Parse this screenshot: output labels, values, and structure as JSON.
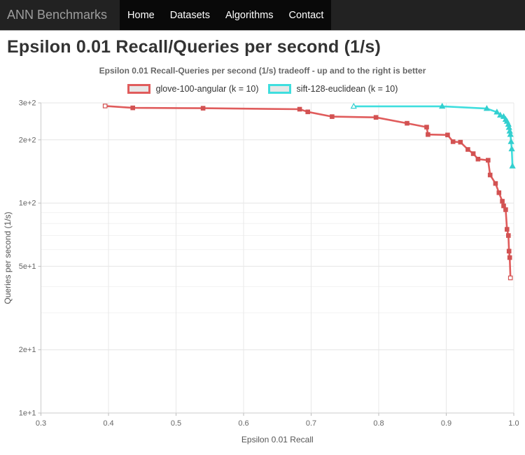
{
  "navbar": {
    "brand": "ANN Benchmarks",
    "items": [
      {
        "label": "Home"
      },
      {
        "label": "Datasets"
      },
      {
        "label": "Algorithms"
      },
      {
        "label": "Contact"
      }
    ]
  },
  "page": {
    "title": "Epsilon 0.01 Recall/Queries per second (1/s)"
  },
  "chart_data": {
    "type": "line",
    "title": "Epsilon 0.01 Recall-Queries per second (1/s) tradeoff - up and to the right is better",
    "xlabel": "Epsilon 0.01 Recall",
    "ylabel": "Queries per second (1/s)",
    "x_scale": "linear",
    "y_scale": "log",
    "xlim": [
      0.3,
      1.0
    ],
    "ylim": [
      10,
      300
    ],
    "grid": true,
    "legend_position": "top-center",
    "legend_swatch_fill": "#e7e7e7",
    "x_ticks": [
      {
        "value": 0.3,
        "label": "0.3"
      },
      {
        "value": 0.4,
        "label": "0.4"
      },
      {
        "value": 0.5,
        "label": "0.5"
      },
      {
        "value": 0.6,
        "label": "0.6"
      },
      {
        "value": 0.7,
        "label": "0.7"
      },
      {
        "value": 0.8,
        "label": "0.8"
      },
      {
        "value": 0.9,
        "label": "0.9"
      },
      {
        "value": 1.0,
        "label": "1.0"
      }
    ],
    "y_ticks": [
      {
        "value": 300,
        "label": "3e+2"
      },
      {
        "value": 200,
        "label": "2e+2"
      },
      {
        "value": 100,
        "label": "1e+2"
      },
      {
        "value": 50,
        "label": "5e+1"
      },
      {
        "value": 20,
        "label": "2e+1"
      },
      {
        "value": 10,
        "label": "1e+1"
      }
    ],
    "y_minor_grid": [
      90,
      80,
      70,
      60,
      40,
      30
    ],
    "series": [
      {
        "name": "glove-100-angular (k = 10)",
        "color": "#e05c5c",
        "marker_fill": "#d25252",
        "marker": "square",
        "hollow_first": true,
        "hollow_last": true,
        "points": [
          [
            0.395,
            290
          ],
          [
            0.436,
            284
          ],
          [
            0.54,
            283
          ],
          [
            0.683,
            280
          ],
          [
            0.695,
            272
          ],
          [
            0.731,
            258
          ],
          [
            0.796,
            256
          ],
          [
            0.842,
            240
          ],
          [
            0.871,
            230
          ],
          [
            0.873,
            212
          ],
          [
            0.902,
            211
          ],
          [
            0.91,
            196
          ],
          [
            0.921,
            195
          ],
          [
            0.932,
            180
          ],
          [
            0.94,
            172
          ],
          [
            0.947,
            162
          ],
          [
            0.962,
            160
          ],
          [
            0.965,
            136
          ],
          [
            0.973,
            124
          ],
          [
            0.978,
            112
          ],
          [
            0.983,
            102
          ],
          [
            0.985,
            97
          ],
          [
            0.988,
            93
          ],
          [
            0.99,
            75
          ],
          [
            0.992,
            70
          ],
          [
            0.993,
            59
          ],
          [
            0.994,
            55
          ],
          [
            0.995,
            44
          ]
        ]
      },
      {
        "name": "sift-128-euclidean (k = 10)",
        "color": "#3fdede",
        "marker_fill": "#33cfcf",
        "marker": "triangle",
        "hollow_first": true,
        "hollow_last": false,
        "points": [
          [
            0.763,
            289
          ],
          [
            0.894,
            289
          ],
          [
            0.96,
            282
          ],
          [
            0.975,
            271
          ],
          [
            0.98,
            262
          ],
          [
            0.985,
            258
          ],
          [
            0.988,
            250
          ],
          [
            0.99,
            245
          ],
          [
            0.992,
            237
          ],
          [
            0.993,
            229
          ],
          [
            0.994,
            220
          ],
          [
            0.995,
            212
          ],
          [
            0.996,
            196
          ],
          [
            0.997,
            181
          ],
          [
            0.998,
            150
          ]
        ]
      }
    ]
  }
}
